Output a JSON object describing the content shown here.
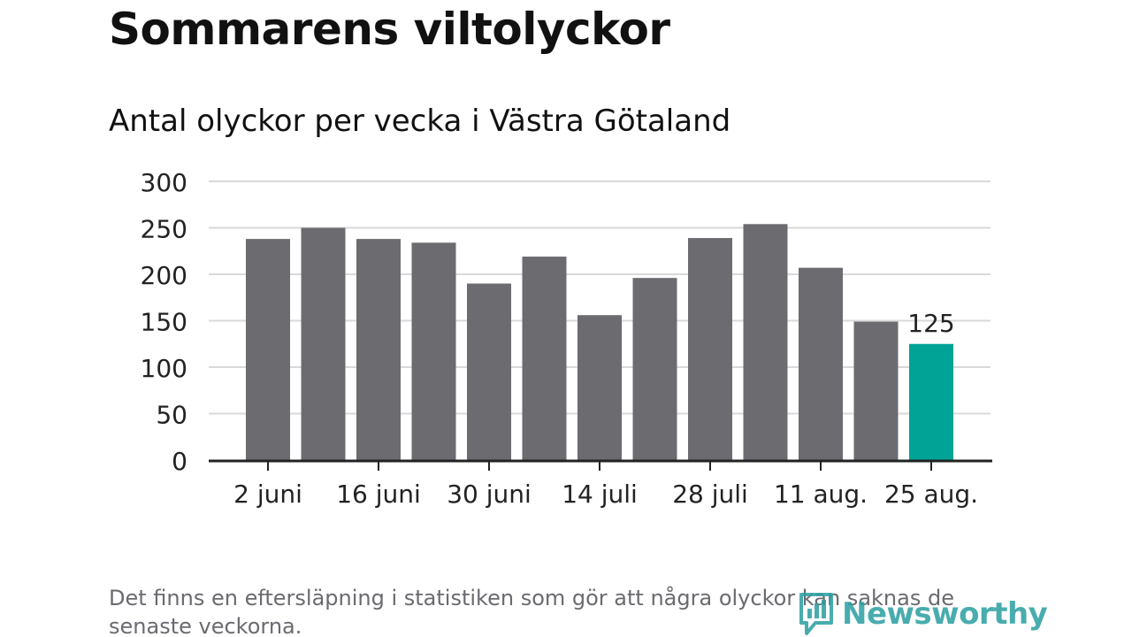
{
  "title": "Sommarens viltolyckor",
  "subtitle": "Antal olyckor per vecka i Västra Götaland",
  "footnote": "Det finns en eftersläpning i statistiken som gör att några olyckor kan saknas de senaste veckorna.",
  "logo": {
    "text": "Newsworthy",
    "icon": "newsworthy-logo-icon",
    "color": "#2a9ea0"
  },
  "colors": {
    "bar": "#6c6b70",
    "highlight": "#00a396",
    "grid": "#d9d9d9",
    "axis": "#222222",
    "text": "#222222"
  },
  "chart_data": {
    "type": "bar",
    "title": "Antal olyckor per vecka i Västra Götaland",
    "xlabel": "",
    "ylabel": "",
    "ylim": [
      0,
      300
    ],
    "yticks": [
      0,
      50,
      100,
      150,
      200,
      250,
      300
    ],
    "grid": true,
    "x_tick_labels": [
      "2 juni",
      "16 juni",
      "30 juni",
      "14 juli",
      "28 juli",
      "11 aug.",
      "25 aug."
    ],
    "categories": [
      "2 juni",
      "9 juni",
      "16 juni",
      "23 juni",
      "30 juni",
      "7 juli",
      "14 juli",
      "21 juli",
      "28 juli",
      "4 aug.",
      "11 aug.",
      "18 aug.",
      "25 aug."
    ],
    "values": [
      238,
      250,
      238,
      234,
      190,
      219,
      156,
      196,
      239,
      254,
      207,
      149,
      125
    ],
    "highlight_index": 12,
    "data_labels": [
      {
        "index": 12,
        "text": "125"
      }
    ]
  }
}
